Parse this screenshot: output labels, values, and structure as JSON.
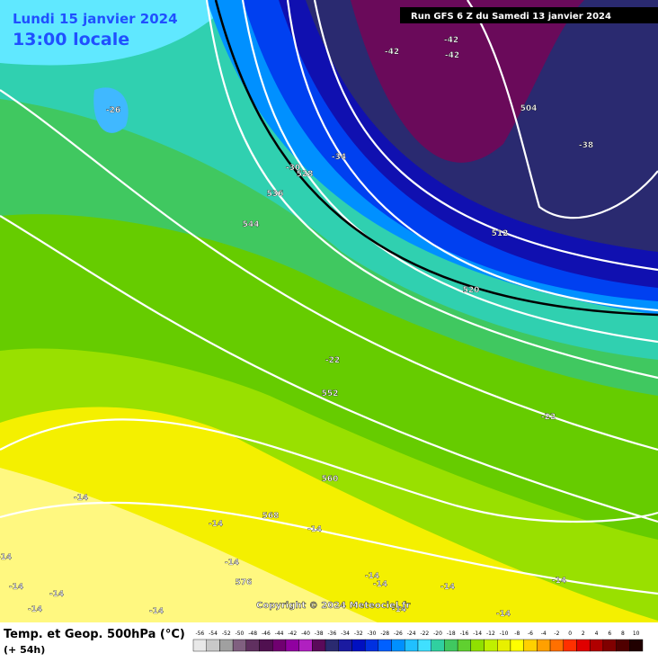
{
  "header": {
    "date": "Lundi 15 janvier 2024",
    "time": "13:00 locale",
    "run": "Run GFS 6 Z du Samedi 13 janvier 2024"
  },
  "labels": [
    "-42",
    "-42",
    "-42",
    "-26",
    "504",
    "-38",
    "-30",
    "528",
    "-34",
    "536",
    "544",
    "512",
    "520",
    "-22",
    "552",
    "-22",
    "560",
    "-14",
    "568",
    "-14",
    "-14",
    "-14",
    "576",
    "-14",
    "-14",
    "-14",
    "-14",
    "-14",
    "-14",
    "-14",
    "-14",
    "-14",
    "-14",
    "-14"
  ],
  "copyright": "Copyright © 2024 Meteociel.fr",
  "footer": {
    "title": "Temp. et Geop. 500hPa (°C)",
    "lead": "(+ 54h)"
  },
  "scale": {
    "labels": [
      -56,
      -54,
      -52,
      -50,
      -48,
      -46,
      -44,
      -42,
      -40,
      -38,
      -36,
      -34,
      -32,
      -30,
      -28,
      -26,
      -24,
      -22,
      -20,
      -18,
      -16,
      -14,
      -12,
      -10,
      -8,
      -6,
      -4,
      -2,
      0,
      2,
      4,
      6,
      8,
      10
    ],
    "colors": [
      "#e8e8e8",
      "#c8c8c8",
      "#a0a0a0",
      "#806080",
      "#603060",
      "#501050",
      "#700070",
      "#9000a0",
      "#b020c0",
      "#5a0a5a",
      "#2a2a70",
      "#1a1aa0",
      "#0010c0",
      "#0030e0",
      "#0060ff",
      "#0090ff",
      "#20c0ff",
      "#40e0ff",
      "#30d0a0",
      "#40c860",
      "#60d030",
      "#90e000",
      "#c0f000",
      "#e8f000",
      "#ffff00",
      "#ffd000",
      "#ffa000",
      "#ff7000",
      "#ff3000",
      "#e00000",
      "#b00000",
      "#800000",
      "#500000",
      "#200000"
    ]
  }
}
